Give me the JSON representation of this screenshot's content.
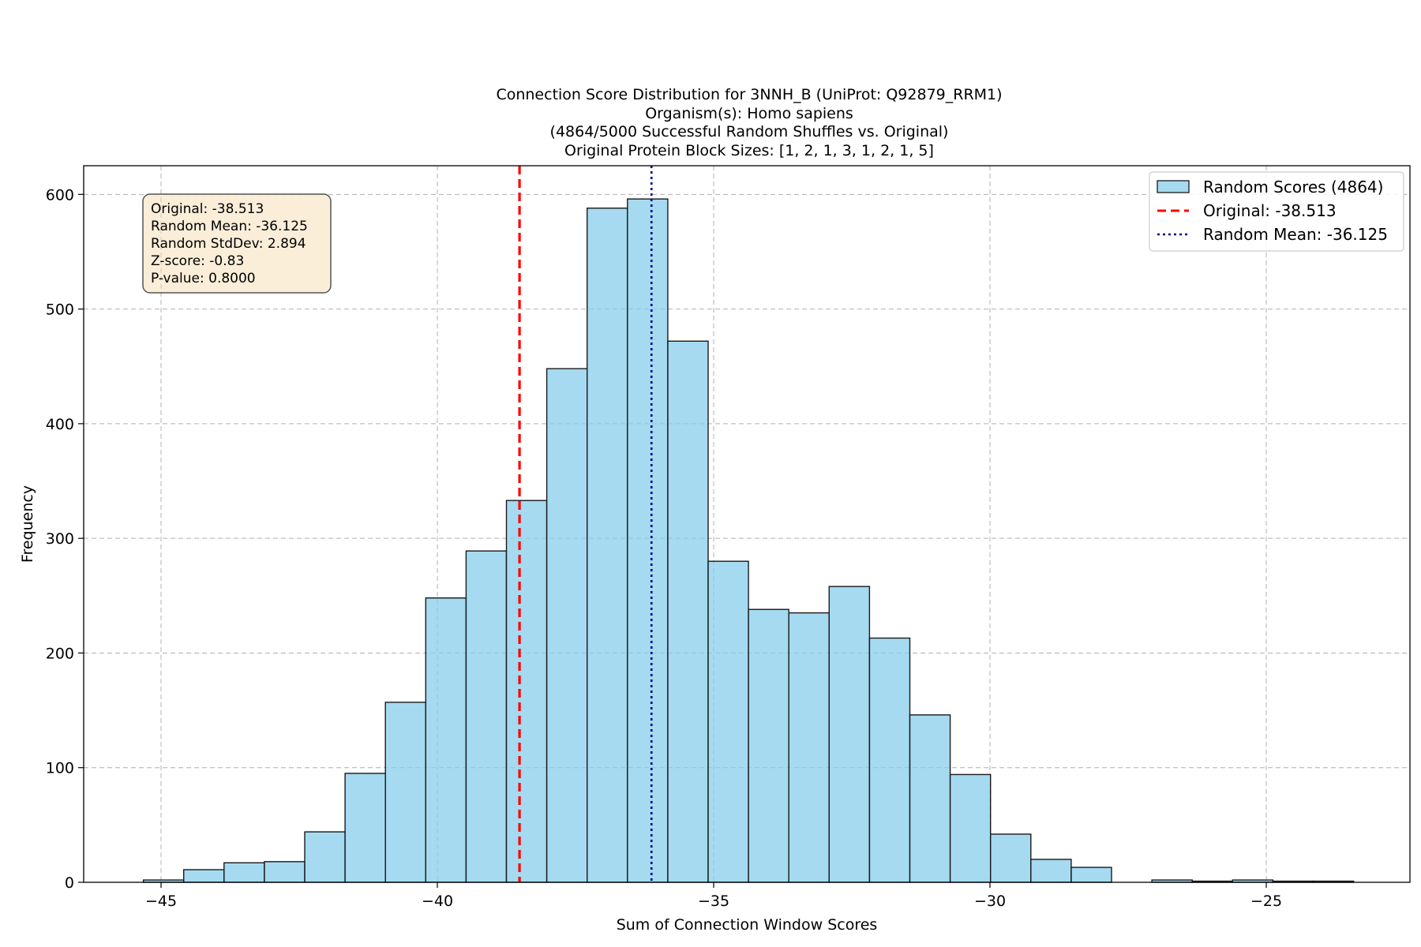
{
  "chart_data": {
    "type": "bar",
    "title_lines": [
      "Connection Score Distribution for 3NNH_B (UniProt: Q92879_RRM1)",
      "Organism(s): Homo sapiens",
      "(4864/5000 Successful Random Shuffles vs. Original)",
      "Original Protein Block Sizes: [1, 2, 1, 3, 1, 2, 1, 5]"
    ],
    "xlabel": "Sum of Connection Window Scores",
    "ylabel": "Frequency",
    "xlim": [
      -46.4,
      -22.4
    ],
    "ylim": [
      0,
      625
    ],
    "xticks": [
      -45,
      -40,
      -35,
      -30,
      -25
    ],
    "xtick_labels": [
      "−45",
      "−40",
      "−35",
      "−30",
      "−25"
    ],
    "yticks": [
      0,
      100,
      200,
      300,
      400,
      500,
      600
    ],
    "grid": true,
    "bin_edges": [
      -45.32,
      -44.59,
      -43.86,
      -43.13,
      -42.4,
      -41.67,
      -40.94,
      -40.21,
      -39.48,
      -38.75,
      -38.02,
      -37.29,
      -36.56,
      -35.83,
      -35.1,
      -34.37,
      -33.64,
      -32.91,
      -32.18,
      -31.45,
      -30.72,
      -29.99,
      -29.26,
      -28.53,
      -27.8,
      -27.07,
      -26.34,
      -25.61,
      -24.88,
      -24.15,
      -23.42
    ],
    "values": [
      2,
      11,
      17,
      18,
      44,
      95,
      157,
      248,
      289,
      333,
      448,
      588,
      596,
      472,
      280,
      238,
      235,
      258,
      213,
      146,
      94,
      42,
      20,
      13,
      0,
      2,
      1,
      2,
      1,
      1
    ],
    "bar_color": "#87ceeb",
    "bar_edge_color": "#1a1a1a",
    "series": [
      {
        "name": "Random Scores (4864)"
      }
    ],
    "reference_lines": [
      {
        "name": "Original: -38.513",
        "x": -38.513,
        "color": "#ff0000",
        "style": "dashed"
      },
      {
        "name": "Random Mean: -36.125",
        "x": -36.125,
        "color": "#00008b",
        "style": "dotted"
      }
    ],
    "legend_position": "top-right",
    "stats_box": {
      "lines": [
        "Original: -38.513",
        "Random Mean: -36.125",
        "Random StdDev: 2.894",
        "Z-score: -0.83",
        "P-value: 0.8000"
      ],
      "background": "#f5deb3",
      "position": "top-left"
    }
  }
}
